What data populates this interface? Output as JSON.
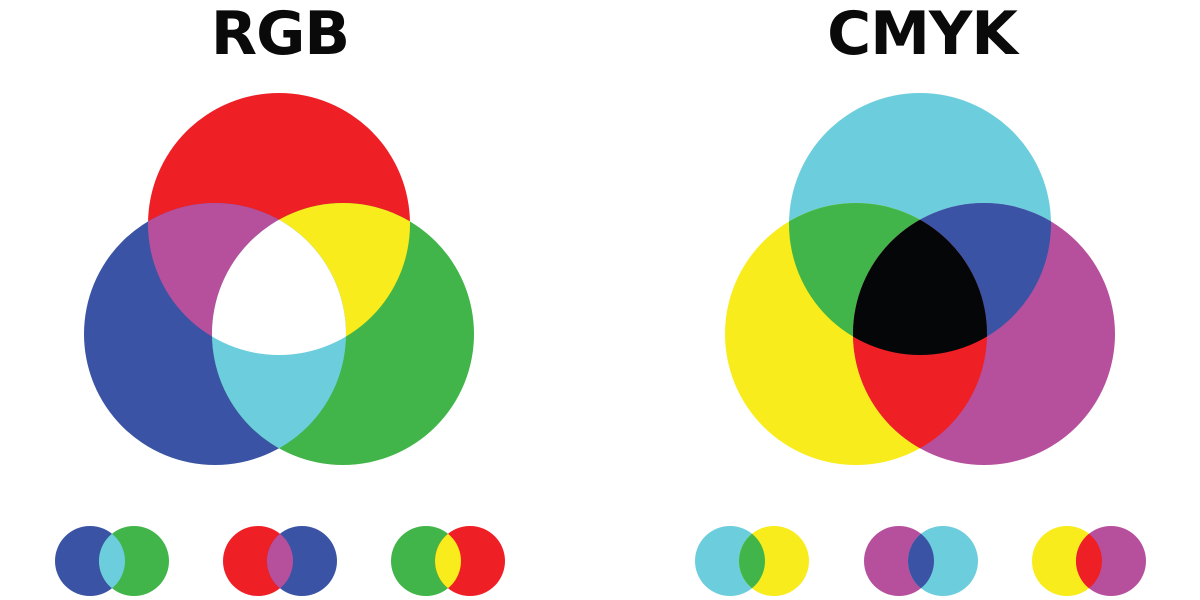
{
  "rgb": {
    "title": "RGB",
    "model": "additive",
    "primaries": [
      {
        "name": "red",
        "color": "#ee1f25"
      },
      {
        "name": "green",
        "color": "#41b549"
      },
      {
        "name": "blue",
        "color": "#3a53a4"
      }
    ],
    "overlaps": [
      {
        "of": [
          "red",
          "green"
        ],
        "color": "#f8ec1c"
      },
      {
        "of": [
          "red",
          "blue"
        ],
        "color": "#b6509d"
      },
      {
        "of": [
          "green",
          "blue"
        ],
        "color": "#6ccedc"
      },
      {
        "of": [
          "red",
          "green",
          "blue"
        ],
        "color": "#ffffff"
      }
    ],
    "pairs": [
      {
        "left": "#3a53a4",
        "right": "#41b549",
        "mix": "#6ccedc"
      },
      {
        "left": "#ee1f25",
        "right": "#3a53a4",
        "mix": "#b6509d"
      },
      {
        "left": "#41b549",
        "right": "#ee1f25",
        "mix": "#f8ec1c"
      }
    ]
  },
  "cmyk": {
    "title": "CMYK",
    "model": "subtractive",
    "primaries": [
      {
        "name": "cyan",
        "color": "#6ccedc"
      },
      {
        "name": "magenta",
        "color": "#b6509d"
      },
      {
        "name": "yellow",
        "color": "#f8ec1c"
      }
    ],
    "overlaps": [
      {
        "of": [
          "cyan",
          "yellow"
        ],
        "color": "#41b549"
      },
      {
        "of": [
          "cyan",
          "magenta"
        ],
        "color": "#3a53a4"
      },
      {
        "of": [
          "magenta",
          "yellow"
        ],
        "color": "#ee1f25"
      },
      {
        "of": [
          "cyan",
          "magenta",
          "yellow"
        ],
        "color": "#040607"
      }
    ],
    "pairs": [
      {
        "left": "#6ccedc",
        "right": "#f8ec1c",
        "mix": "#41b549"
      },
      {
        "left": "#b6509d",
        "right": "#6ccedc",
        "mix": "#3a53a4"
      },
      {
        "left": "#f8ec1c",
        "right": "#b6509d",
        "mix": "#ee1f25"
      }
    ]
  }
}
